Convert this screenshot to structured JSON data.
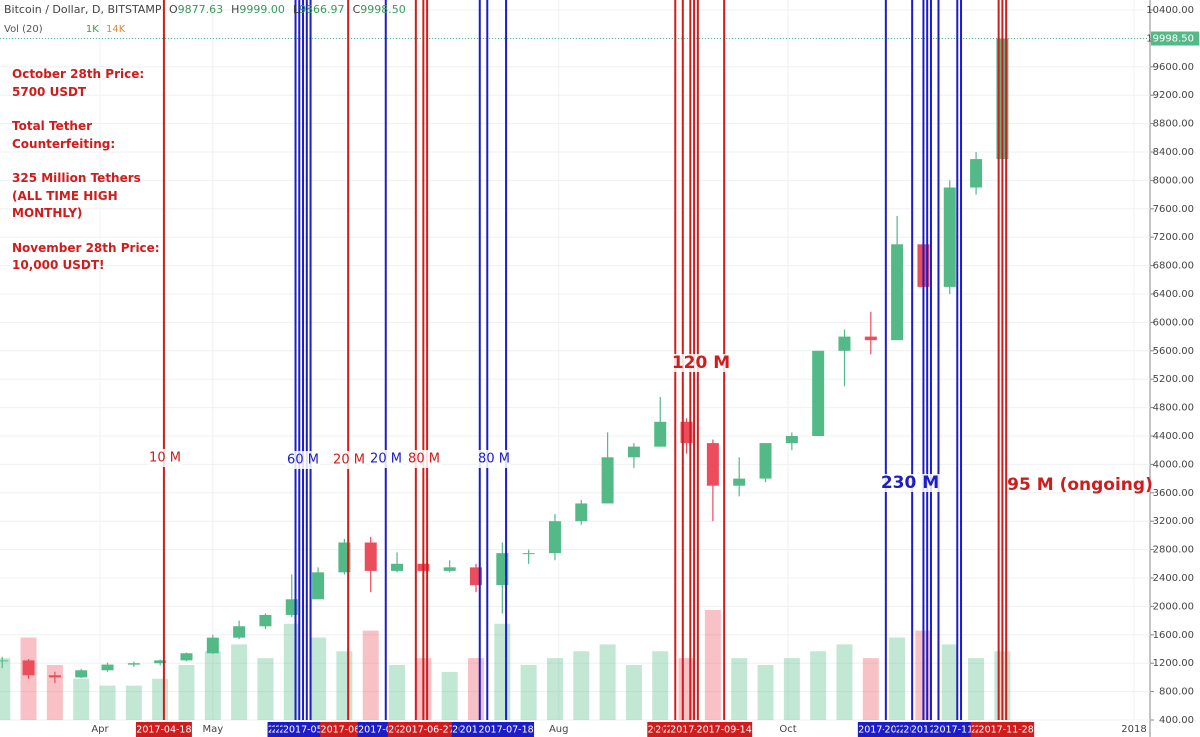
{
  "header": {
    "symbol": "Bitcoin / Dollar, D, BITSTAMP",
    "ohlc": [
      {
        "key": "O",
        "value": "9877.63"
      },
      {
        "key": "H",
        "value": "9999.00"
      },
      {
        "key": "L",
        "value": "9866.97"
      },
      {
        "key": "C",
        "value": "9998.50"
      }
    ],
    "volume_label": "Vol (20)",
    "volume_values": [
      "1K",
      "14K"
    ]
  },
  "notes": [
    [
      "October 28th Price:",
      "5700 USDT"
    ],
    [
      "Total Tether",
      "Counterfeiting:"
    ],
    [
      "325 Million Tethers",
      "(ALL TIME HIGH",
      "MONTHLY)"
    ],
    [
      "November 28th Price:",
      "10,000 USDT!"
    ]
  ],
  "chart_data": {
    "type": "candlestick",
    "x": [
      "2017-03-06",
      "2017-03-13",
      "2017-03-20",
      "2017-03-27",
      "2017-04-03",
      "2017-04-10",
      "2017-04-17",
      "2017-04-24",
      "2017-05-01",
      "2017-05-08",
      "2017-05-15",
      "2017-05-22",
      "2017-05-29",
      "2017-06-05",
      "2017-06-12",
      "2017-06-19",
      "2017-06-26",
      "2017-07-03",
      "2017-07-10",
      "2017-07-17",
      "2017-07-24",
      "2017-07-31",
      "2017-08-07",
      "2017-08-14",
      "2017-08-21",
      "2017-08-28",
      "2017-09-04",
      "2017-09-11",
      "2017-09-18",
      "2017-09-25",
      "2017-10-02",
      "2017-10-09",
      "2017-10-16",
      "2017-10-23",
      "2017-10-30",
      "2017-11-06",
      "2017-11-13",
      "2017-11-20",
      "2017-11-27"
    ],
    "open": [
      1230,
      1240,
      1030,
      1000,
      1100,
      1180,
      1200,
      1240,
      1340,
      1560,
      1720,
      1880,
      2100,
      2480,
      2900,
      2500,
      2600,
      2500,
      2550,
      2300,
      2750,
      2750,
      3200,
      3450,
      4100,
      4250,
      4600,
      4300,
      3700,
      3800,
      4300,
      4400,
      5600,
      5800,
      5750,
      7100,
      6500,
      7900,
      8300
    ],
    "high": [
      1290,
      1260,
      1080,
      1120,
      1210,
      1220,
      1250,
      1350,
      1600,
      1800,
      1900,
      2450,
      2550,
      2950,
      2980,
      2760,
      2700,
      2650,
      2600,
      2900,
      2800,
      3300,
      3500,
      4450,
      4300,
      4950,
      4650,
      4350,
      4100,
      4300,
      4450,
      5600,
      5900,
      6150,
      7500,
      7600,
      8000,
      8400,
      10000
    ],
    "low": [
      1130,
      980,
      920,
      990,
      1080,
      1150,
      1170,
      1230,
      1330,
      1540,
      1680,
      1850,
      2100,
      2450,
      2200,
      2480,
      2400,
      2480,
      2200,
      1900,
      2600,
      2650,
      3150,
      3450,
      3950,
      4250,
      4150,
      3200,
      3550,
      3750,
      4200,
      4400,
      5100,
      5550,
      5750,
      5550,
      6400,
      7800,
      8300
    ],
    "close": [
      1240,
      1030,
      1000,
      1100,
      1180,
      1200,
      1240,
      1340,
      1560,
      1720,
      1880,
      2100,
      2480,
      2900,
      2500,
      2600,
      2500,
      2550,
      2300,
      2750,
      2750,
      3200,
      3450,
      4100,
      4250,
      4600,
      4300,
      3700,
      3800,
      4300,
      4400,
      5600,
      5800,
      5750,
      7100,
      6500,
      7900,
      8300,
      9998.5
    ],
    "volume": [
      9,
      12,
      8,
      6,
      5,
      5,
      6,
      8,
      10,
      11,
      9,
      14,
      12,
      10,
      13,
      8,
      9,
      7,
      9,
      14,
      8,
      9,
      10,
      11,
      8,
      10,
      9,
      16,
      9,
      8,
      9,
      10,
      11,
      9,
      12,
      13,
      11,
      9,
      10
    ],
    "up_color": "#53b987",
    "down_color": "#eb4d5c",
    "last_price_label": "9998.50",
    "ylim": [
      400,
      10400
    ],
    "yticks": [
      {
        "value": 400,
        "label": "400.00"
      },
      {
        "value": 800,
        "label": "800.00"
      },
      {
        "value": 1200,
        "label": "1200.00"
      },
      {
        "value": 1600,
        "label": "1600.00"
      },
      {
        "value": 2000,
        "label": "2000.00"
      },
      {
        "value": 2400,
        "label": "2400.00"
      },
      {
        "value": 2800,
        "label": "2800.00"
      },
      {
        "value": 3200,
        "label": "3200.00"
      },
      {
        "value": 3600,
        "label": "3600.00"
      },
      {
        "value": 4000,
        "label": "4000.00"
      },
      {
        "value": 4400,
        "label": "4400.00"
      },
      {
        "value": 4800,
        "label": "4800.00"
      },
      {
        "value": 5200,
        "label": "5200.00"
      },
      {
        "value": 5600,
        "label": "5600.00"
      },
      {
        "value": 6000,
        "label": "6000.00"
      },
      {
        "value": 6400,
        "label": "6400.00"
      },
      {
        "value": 6800,
        "label": "6800.00"
      },
      {
        "value": 7200,
        "label": "7200.00"
      },
      {
        "value": 7600,
        "label": "7600.00"
      },
      {
        "value": 8000,
        "label": "8000.00"
      },
      {
        "value": 8400,
        "label": "8400.00"
      },
      {
        "value": 8800,
        "label": "8800.00"
      },
      {
        "value": 9200,
        "label": "9200.00"
      },
      {
        "value": 9600,
        "label": "9600.00"
      },
      {
        "value": 10000,
        "label": "10000.00"
      },
      {
        "value": 10400,
        "label": "10400.00"
      }
    ],
    "xticks": [
      {
        "value": "2017-04-01",
        "label": "Apr"
      },
      {
        "value": "2017-05-01",
        "label": "May"
      },
      {
        "value": "2017-08-01",
        "label": "Aug"
      },
      {
        "value": "2017-10-01",
        "label": "Oct"
      },
      {
        "value": "2018-01-01",
        "label": "2018"
      }
    ],
    "grid": true,
    "events": [
      {
        "date": "2017-04-18",
        "color": "#d01c1c"
      },
      {
        "date": "2017-05-23",
        "color": "#1c1cc8"
      },
      {
        "date": "2017-05-24",
        "color": "#1c1cc8"
      },
      {
        "date": "2017-05-25",
        "color": "#1c1cc8"
      },
      {
        "date": "2017-05-26",
        "color": "#1c1cc8"
      },
      {
        "date": "2017-05-27",
        "color": "#1c1cc8"
      },
      {
        "date": "2017-06-06",
        "color": "#d01c1c"
      },
      {
        "date": "2017-06-16",
        "color": "#1c1cc8"
      },
      {
        "date": "2017-06-24",
        "color": "#d01c1c"
      },
      {
        "date": "2017-06-26",
        "color": "#d01c1c"
      },
      {
        "date": "2017-06-27",
        "color": "#d01c1c"
      },
      {
        "date": "2017-07-11",
        "color": "#1c1cc8"
      },
      {
        "date": "2017-07-13",
        "color": "#1c1cc8"
      },
      {
        "date": "2017-07-18",
        "color": "#1c1cc8"
      },
      {
        "date": "2017-09-01",
        "color": "#d01c1c"
      },
      {
        "date": "2017-09-03",
        "color": "#d01c1c"
      },
      {
        "date": "2017-09-05",
        "color": "#d01c1c"
      },
      {
        "date": "2017-09-06",
        "color": "#d01c1c"
      },
      {
        "date": "2017-09-07",
        "color": "#d01c1c"
      },
      {
        "date": "2017-09-14",
        "color": "#d01c1c"
      },
      {
        "date": "2017-10-27",
        "color": "#1c1cc8"
      },
      {
        "date": "2017-11-03",
        "color": "#1c1cc8"
      },
      {
        "date": "2017-11-06",
        "color": "#1c1cc8"
      },
      {
        "date": "2017-11-07",
        "color": "#1c1cc8"
      },
      {
        "date": "2017-11-08",
        "color": "#1c1cc8"
      },
      {
        "date": "2017-11-10",
        "color": "#1c1cc8"
      },
      {
        "date": "2017-11-15",
        "color": "#1c1cc8"
      },
      {
        "date": "2017-11-16",
        "color": "#1c1cc8"
      },
      {
        "date": "2017-11-26",
        "color": "#d01c1c"
      },
      {
        "date": "2017-11-27",
        "color": "#d01c1c"
      },
      {
        "date": "2017-11-28",
        "color": "#d01c1c"
      }
    ],
    "annotations": [
      {
        "text": "10 M",
        "color": "#d01c1c"
      },
      {
        "text": "60 M",
        "color": "#1c1cc8"
      },
      {
        "text": "20 M",
        "color": "#d01c1c"
      },
      {
        "text": "20 M",
        "color": "#1c1cc8"
      },
      {
        "text": "80 M",
        "color": "#d01c1c"
      },
      {
        "text": "80 M",
        "color": "#1c1cc8"
      },
      {
        "text": "120 M",
        "color": "#d01c1c"
      },
      {
        "text": "230 M",
        "color": "#1c1cc8"
      },
      {
        "text": "95 M (ongoing)",
        "color": "#d01c1c"
      }
    ]
  }
}
